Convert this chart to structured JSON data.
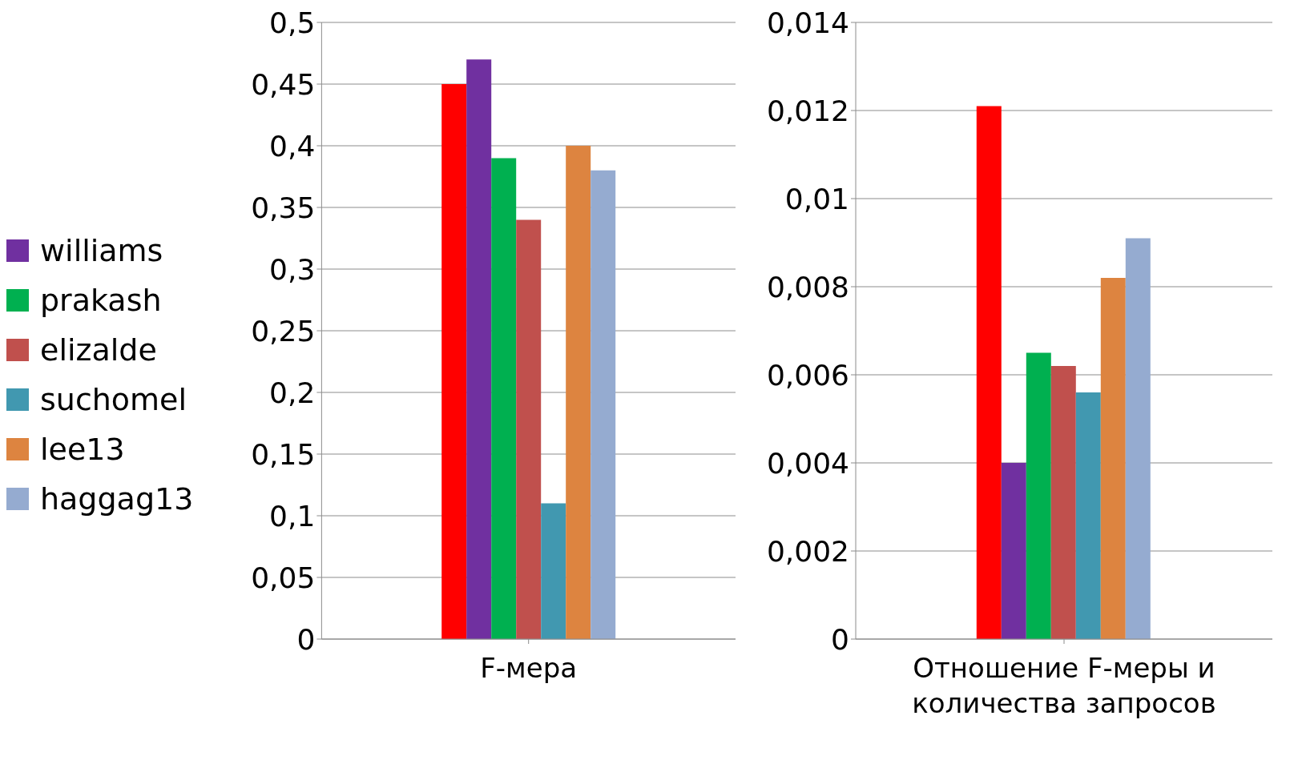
{
  "chart_data": [
    {
      "type": "bar",
      "categories": [
        "F-мера"
      ],
      "series": [
        {
          "color": "#ff0000",
          "values": [
            0.45
          ]
        },
        {
          "name": "williams",
          "color": "#7030a0",
          "values": [
            0.47
          ]
        },
        {
          "name": "prakash",
          "color": "#00b050",
          "values": [
            0.39
          ]
        },
        {
          "name": "elizalde",
          "color": "#c0504d",
          "values": [
            0.34
          ]
        },
        {
          "name": "suchomel",
          "color": "#4198b0",
          "values": [
            0.11
          ]
        },
        {
          "name": "lee13",
          "color": "#dd8440",
          "values": [
            0.4
          ]
        },
        {
          "name": "haggag13",
          "color": "#95abd0",
          "values": [
            0.38
          ]
        }
      ],
      "ylim": [
        0,
        0.5
      ],
      "yticks": [
        0,
        {
          "value": 0.05,
          "label": "0,05"
        },
        {
          "value": 0.1,
          "label": "0,1"
        },
        {
          "value": 0.15,
          "label": "0,15"
        },
        {
          "value": 0.2,
          "label": "0,2"
        },
        {
          "value": 0.25,
          "label": "0,25"
        },
        {
          "value": 0.3,
          "label": "0,3"
        },
        {
          "value": 0.35,
          "label": "0,35"
        },
        {
          "value": 0.4,
          "label": "0,4"
        },
        {
          "value": 0.45,
          "label": "0,45"
        },
        {
          "value": 0.5,
          "label": "0,5"
        }
      ],
      "grid": "y",
      "legend": "left"
    },
    {
      "type": "bar",
      "categories": [
        "Отношение F-меры и количества запросов"
      ],
      "series": [
        {
          "color": "#ff0000",
          "values": [
            0.0121
          ]
        },
        {
          "color": "#7030a0",
          "values": [
            0.004
          ]
        },
        {
          "color": "#00b050",
          "values": [
            0.0065
          ]
        },
        {
          "color": "#c0504d",
          "values": [
            0.0062
          ]
        },
        {
          "color": "#4198b0",
          "values": [
            0.0056
          ]
        },
        {
          "color": "#dd8440",
          "values": [
            0.0082
          ]
        },
        {
          "color": "#95abd0",
          "values": [
            0.0091
          ]
        }
      ],
      "ylim": [
        0,
        0.014
      ],
      "yticks": [
        0,
        {
          "value": 0.002,
          "label": "0,002"
        },
        {
          "value": 0.004,
          "label": "0,004"
        },
        {
          "value": 0.006,
          "label": "0,006"
        },
        {
          "value": 0.008,
          "label": "0,008"
        },
        {
          "value": 0.01,
          "label": "0,01"
        },
        {
          "value": 0.012,
          "label": "0,012"
        },
        {
          "value": 0.014,
          "label": "0,014"
        }
      ],
      "grid": "y"
    }
  ]
}
